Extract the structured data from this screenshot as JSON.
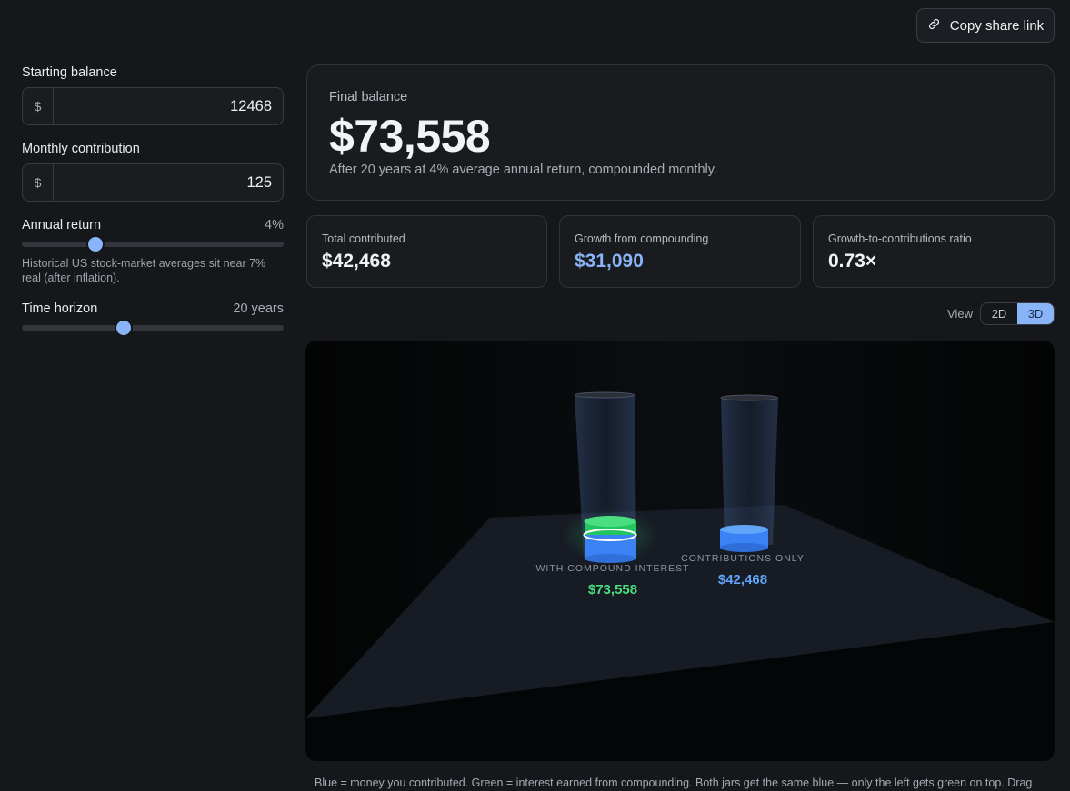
{
  "header": {
    "share_label": "Copy share link"
  },
  "inputs": {
    "starting_balance": {
      "label": "Starting balance",
      "prefix": "$",
      "value": "12468"
    },
    "monthly_contribution": {
      "label": "Monthly contribution",
      "prefix": "$",
      "value": "125"
    },
    "annual_return": {
      "label": "Annual return",
      "display": "4%",
      "fraction": 0.28,
      "hint": "Historical US stock-market averages sit near 7% real (after inflation)."
    },
    "time_horizon": {
      "label": "Time horizon",
      "display": "20 years",
      "fraction": 0.39
    }
  },
  "summary": {
    "label": "Final balance",
    "value": "$73,558",
    "subtitle": "After 20 years at 4% average annual return, compounded monthly."
  },
  "stats": [
    {
      "label": "Total contributed",
      "value": "$42,468"
    },
    {
      "label": "Growth from compounding",
      "value": "$31,090"
    },
    {
      "label": "Growth-to-contributions ratio",
      "value": "0.73×"
    }
  ],
  "view": {
    "label": "View",
    "options": [
      "2D",
      "3D"
    ],
    "selected": "3D"
  },
  "jars": [
    {
      "label": "WITH COMPOUND INTEREST",
      "value": "$73,558",
      "color": "#4ade80"
    },
    {
      "label": "CONTRIBUTIONS ONLY",
      "value": "$42,468",
      "color": "#60a5fa"
    }
  ],
  "caption": "Blue = money you contributed. Green = interest earned from compounding. Both jars get the same blue — only the left gets green on top. Drag"
}
